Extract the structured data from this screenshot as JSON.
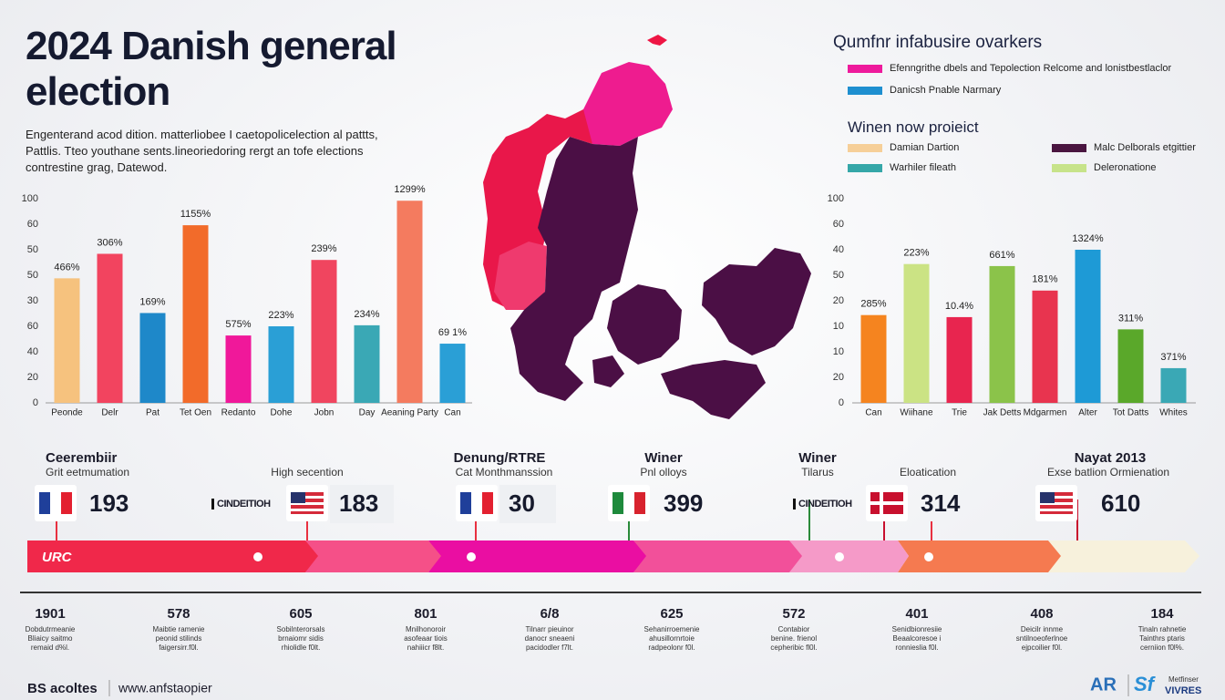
{
  "header": {
    "title": "2024 Danish general election",
    "subtitle": [
      "Engenterand acod dition. matterliobee I caetopolicelection al pattts,",
      "Pattlis. Tteo youthane sents.lineoriedoring rergt an tofe elections",
      "contrestine grag, Datewod."
    ]
  },
  "legend": {
    "title": "Qumfnr infabusire ovarkers",
    "items": [
      {
        "label": "Efenngrithe dbels and Tepolection Relcome and lonistbestlaclor",
        "color": "#ee1a9c"
      },
      {
        "label": "Danicsh Pnable Narmary",
        "color": "#1e8fd0"
      }
    ],
    "subtitle": "Winen now proieict",
    "items2": [
      {
        "label": "Damian Dartion",
        "color": "#f6cf98"
      },
      {
        "label": "Malc Delborals etgittier",
        "color": "#4a1540"
      },
      {
        "label": "Warhiler fileath",
        "color": "#35a7a8"
      },
      {
        "label": "Deleronatione",
        "color": "#c7e38a"
      }
    ]
  },
  "chart_data": [
    {
      "type": "bar",
      "categories": [
        "Peonde",
        "Delr",
        "Pat",
        "Tet Oen",
        "Redanto",
        "Dohe",
        "Jobn",
        "Day",
        "Aeaning Party",
        "Can"
      ],
      "values": [
        61,
        73,
        44,
        87,
        33,
        37.5,
        70,
        38,
        99,
        29
      ],
      "colors": [
        "#f6c27e",
        "#f2445f",
        "#1e88c9",
        "#f26b2a",
        "#f0189a",
        "#2a9fd6",
        "#f0455f",
        "#3aa8b5",
        "#f47b5f",
        "#2a9fd6"
      ],
      "bar_labels": [
        "466%",
        "306%",
        "169%",
        "1155%",
        "575%",
        "223%",
        "239%",
        "234%",
        "1299%",
        "69 1%"
      ],
      "ylim": [
        0,
        100
      ],
      "yticks": [
        0,
        {
          "value": 12.5,
          "label": "20"
        },
        {
          "value": 25,
          "label": "40"
        },
        {
          "value": 37.5,
          "label": "60"
        },
        {
          "value": 50,
          "label": "30"
        },
        {
          "value": 62.5,
          "label": "50"
        },
        {
          "value": 75,
          "label": "50"
        },
        {
          "value": 87.5,
          "label": "60"
        },
        100
      ],
      "grid": false
    },
    {
      "type": "bar",
      "categories": [
        "Can",
        "Wiihane",
        "Trie",
        "Jak Detts",
        "Mdgarmen",
        "Alter",
        "Tot Datts",
        "Whites"
      ],
      "values": [
        43,
        68,
        42,
        67,
        55,
        75,
        36,
        17
      ],
      "colors": [
        "#f5841f",
        "#cbe384",
        "#e8254f",
        "#8bc34a",
        "#e8344f",
        "#1e9ad6",
        "#5aa82a",
        "#3aa8b5"
      ],
      "bar_labels": [
        "285%",
        "223%",
        "10.4%",
        "661%",
        "181%",
        "1324%",
        "311%",
        "371%"
      ],
      "ylim": [
        0,
        100
      ],
      "yticks": [
        0,
        {
          "value": 12.5,
          "label": "20"
        },
        {
          "value": 25,
          "label": "10"
        },
        {
          "value": 37.5,
          "label": "10"
        },
        {
          "value": 50,
          "label": "20"
        },
        {
          "value": 62.5,
          "label": "50"
        },
        {
          "value": 75,
          "label": "40"
        },
        {
          "value": 87.5,
          "label": "60"
        },
        100
      ],
      "grid": false
    }
  ],
  "timeline": {
    "cards": [
      {
        "heading": "Ceerembiir",
        "subheading": "Grit eetmumation",
        "number": "193"
      },
      {
        "subheading": "High secention",
        "logo": "CINDEITIOH",
        "number": "183"
      },
      {
        "heading": "Denung/RTRE",
        "subheading": "Cat Monthmanssion",
        "number": "30"
      },
      {
        "heading": "Winer",
        "subheading": "Pnl olloys",
        "number": "399"
      },
      {
        "heading": "Winer",
        "subheading": "Tilarus",
        "logo": "CINDEITIOH",
        "number": "314"
      },
      {
        "heading": "Nayat 2013",
        "subheading": "Exse batlion Ormienation",
        "number": "610"
      }
    ],
    "extra_label": "Eloatication",
    "bar_label": "URC",
    "columns": [
      {
        "number": "1901",
        "caption": [
          "Dobdutrmeanie",
          "Bliaicy saitmo",
          "remaid d%l."
        ]
      },
      {
        "number": "578",
        "caption": [
          "Maibtie ramenie",
          "peonid stilinds",
          "faigersirr.f0l."
        ]
      },
      {
        "number": "605",
        "caption": [
          "Sobilnterorsals",
          "brnaiomr sidis",
          "rhiolidle f0lt."
        ]
      },
      {
        "number": "801",
        "caption": [
          "Mnilhonoroir",
          "asofeaar tiois",
          "nahiiicr f8lt."
        ]
      },
      {
        "number": "6/8",
        "caption": [
          "Tilnarr pieuinor",
          "danocr sneaeni",
          "pacidodler f7lt."
        ]
      },
      {
        "number": "625",
        "caption": [
          "Sehanirroemenie",
          "ahusillornrtoie",
          "radpeolonr f0l."
        ]
      },
      {
        "number": "572",
        "caption": [
          "Contabior",
          "benine. frienol",
          "cepheribic fl0l."
        ]
      },
      {
        "number": "401",
        "caption": [
          "Senidbionresiie",
          "Beaalcoresoe i",
          "ronnieslia f0l."
        ]
      },
      {
        "number": "408",
        "caption": [
          "Deicilr innme",
          "sntilnoeoferlnoe",
          "ejpcoilier f0l."
        ]
      },
      {
        "number": "184",
        "caption": [
          "Tinaln rahnetie",
          "Tainthrs ptaris",
          "cerniion f0l%."
        ]
      }
    ]
  },
  "footer": {
    "left": "BS acoltes",
    "url": "www.anfstaopier",
    "logo_a": "AR",
    "logo_b": "Sf",
    "logo_c": "Metfinser",
    "logo_d": "VIVRES"
  }
}
